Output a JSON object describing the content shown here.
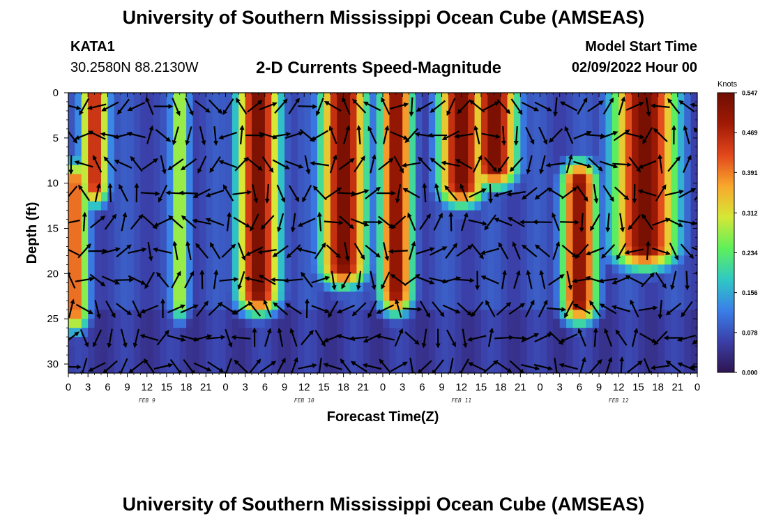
{
  "page": {
    "title_top": "University of Southern Mississippi Ocean Cube (AMSEAS)",
    "title_bottom": "University of Southern Mississippi Ocean Cube (AMSEAS)",
    "station_id": "KATA1",
    "station_coords": "30.2580N  88.2130W",
    "plot_title": "2-D Currents Speed-Magnitude",
    "model_start_label": "Model Start Time",
    "model_start_value": "02/09/2022 Hour 00"
  },
  "chart_data": {
    "type": "heatmap",
    "title": "2-D Currents Speed-Magnitude",
    "xlabel": "Forecast Time(Z)",
    "ylabel": "Depth (ft)",
    "x_range_hours": [
      0,
      96
    ],
    "y_range_ft": [
      0,
      31
    ],
    "x_tick_hours": [
      0,
      3,
      6,
      9,
      12,
      15,
      18,
      21,
      24,
      27,
      30,
      33,
      36,
      39,
      42,
      45,
      48,
      51,
      54,
      57,
      60,
      63,
      66,
      69,
      72,
      75,
      78,
      81,
      84,
      87,
      90,
      93,
      96
    ],
    "x_tick_labels": [
      "0",
      "3",
      "6",
      "9",
      "12",
      "15",
      "18",
      "21",
      "0",
      "3",
      "6",
      "9",
      "12",
      "15",
      "18",
      "21",
      "0",
      "3",
      "6",
      "9",
      "12",
      "15",
      "18",
      "21",
      "0",
      "3",
      "6",
      "9",
      "12",
      "15",
      "18",
      "21",
      "0"
    ],
    "date_labels": [
      {
        "hour": 12,
        "text": "FEB 9"
      },
      {
        "hour": 36,
        "text": "FEB 10"
      },
      {
        "hour": 60,
        "text": "FEB 11"
      },
      {
        "hour": 84,
        "text": "FEB 12"
      }
    ],
    "y_ticks": [
      0,
      5,
      10,
      15,
      20,
      25,
      30
    ],
    "colorbar": {
      "units": "Knots",
      "ticks": [
        0.0,
        0.078,
        0.156,
        0.234,
        0.312,
        0.391,
        0.469,
        0.547
      ],
      "tick_labels": [
        "0.000",
        "0.078",
        "0.156",
        "0.234",
        "0.312",
        "0.391",
        "0.469",
        "0.547"
      ],
      "range": [
        0,
        0.547
      ],
      "colors": [
        "#2e1550",
        "#3b3fa8",
        "#3a7fe8",
        "#2fc9c4",
        "#5ff05a",
        "#d6e736",
        "#f9a72c",
        "#e2461c",
        "#a01a05",
        "#6e0e02"
      ]
    },
    "speed_features_knots": [
      {
        "center_hour": 4,
        "depth_range_ft": [
          0,
          10
        ],
        "halfwidth_h": 2.2,
        "peak": 0.47
      },
      {
        "center_hour": 1,
        "depth_range_ft": [
          10,
          24
        ],
        "halfwidth_h": 2.2,
        "peak": 0.42
      },
      {
        "center_hour": 10,
        "depth_range_ft": [
          0,
          11
        ],
        "halfwidth_h": 1.6,
        "peak": 0.06
      },
      {
        "center_hour": 17,
        "depth_range_ft": [
          0,
          23
        ],
        "halfwidth_h": 1.6,
        "peak": 0.3
      },
      {
        "center_hour": 29,
        "depth_range_ft": [
          0,
          22
        ],
        "halfwidth_h": 3.3,
        "peak": 0.54
      },
      {
        "center_hour": 42,
        "depth_range_ft": [
          0,
          19
        ],
        "halfwidth_h": 3.6,
        "peak": 0.54
      },
      {
        "center_hour": 50,
        "depth_range_ft": [
          0,
          22
        ],
        "halfwidth_h": 2.6,
        "peak": 0.52
      },
      {
        "center_hour": 60,
        "depth_range_ft": [
          0,
          10
        ],
        "halfwidth_h": 3.6,
        "peak": 0.54
      },
      {
        "center_hour": 65,
        "depth_range_ft": [
          0,
          8
        ],
        "halfwidth_h": 3.6,
        "peak": 0.54
      },
      {
        "center_hour": 78,
        "depth_range_ft": [
          10,
          23
        ],
        "halfwidth_h": 2.8,
        "peak": 0.52
      },
      {
        "center_hour": 88,
        "depth_range_ft": [
          0,
          17
        ],
        "halfwidth_h": 5.0,
        "peak": 0.54
      }
    ]
  }
}
